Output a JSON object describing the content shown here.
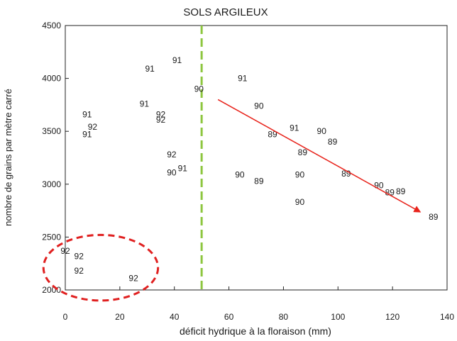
{
  "chart_data": {
    "type": "scatter",
    "title": "SOLS ARGILEUX",
    "xlabel": "déficit hydrique à la floraison (mm)",
    "ylabel": "nombre de grains par mètre carré",
    "xlim": [
      0,
      140
    ],
    "ylim": [
      2000,
      4500
    ],
    "xticks": [
      0,
      20,
      40,
      60,
      80,
      100,
      120,
      140
    ],
    "yticks": [
      2000,
      2500,
      3000,
      3500,
      4000,
      4500
    ],
    "grid": false,
    "point_label_meaning": "harvest year (89, 90, 91, 92)",
    "points": [
      {
        "x": 31,
        "y": 4090,
        "label": "91"
      },
      {
        "x": 41,
        "y": 4170,
        "label": "91"
      },
      {
        "x": 49,
        "y": 3900,
        "label": "90"
      },
      {
        "x": 29,
        "y": 3760,
        "label": "91"
      },
      {
        "x": 8,
        "y": 3660,
        "label": "91"
      },
      {
        "x": 10,
        "y": 3540,
        "label": "92"
      },
      {
        "x": 8,
        "y": 3470,
        "label": "91"
      },
      {
        "x": 35,
        "y": 3660,
        "label": "92"
      },
      {
        "x": 35,
        "y": 3610,
        "label": "92"
      },
      {
        "x": 39,
        "y": 3280,
        "label": "92"
      },
      {
        "x": 39,
        "y": 3110,
        "label": "90"
      },
      {
        "x": 43,
        "y": 3150,
        "label": "91"
      },
      {
        "x": 65,
        "y": 4000,
        "label": "91"
      },
      {
        "x": 71,
        "y": 3740,
        "label": "90"
      },
      {
        "x": 76,
        "y": 3470,
        "label": "89"
      },
      {
        "x": 84,
        "y": 3530,
        "label": "91"
      },
      {
        "x": 94,
        "y": 3500,
        "label": "90"
      },
      {
        "x": 98,
        "y": 3400,
        "label": "89"
      },
      {
        "x": 87,
        "y": 3300,
        "label": "89"
      },
      {
        "x": 64,
        "y": 3090,
        "label": "90"
      },
      {
        "x": 71,
        "y": 3030,
        "label": "89"
      },
      {
        "x": 86,
        "y": 3090,
        "label": "90"
      },
      {
        "x": 103,
        "y": 3100,
        "label": "89"
      },
      {
        "x": 86,
        "y": 2830,
        "label": "90"
      },
      {
        "x": 115,
        "y": 2990,
        "label": "90"
      },
      {
        "x": 119,
        "y": 2920,
        "label": "89"
      },
      {
        "x": 123,
        "y": 2930,
        "label": "89"
      },
      {
        "x": 135,
        "y": 2690,
        "label": "89"
      },
      {
        "x": 0,
        "y": 2370,
        "label": "92"
      },
      {
        "x": 5,
        "y": 2320,
        "label": "92"
      },
      {
        "x": 5,
        "y": 2180,
        "label": "92"
      },
      {
        "x": 25,
        "y": 2110,
        "label": "92"
      }
    ],
    "threshold_line": {
      "x": 50,
      "color": "#8dc63f"
    },
    "trend_arrow": {
      "from": [
        56,
        3800
      ],
      "to": [
        130,
        2740
      ],
      "color": "#e8231b"
    },
    "highlight_ellipse": {
      "center": [
        13,
        2210
      ],
      "rx": 21,
      "ry": 310,
      "color": "#e02020"
    }
  }
}
